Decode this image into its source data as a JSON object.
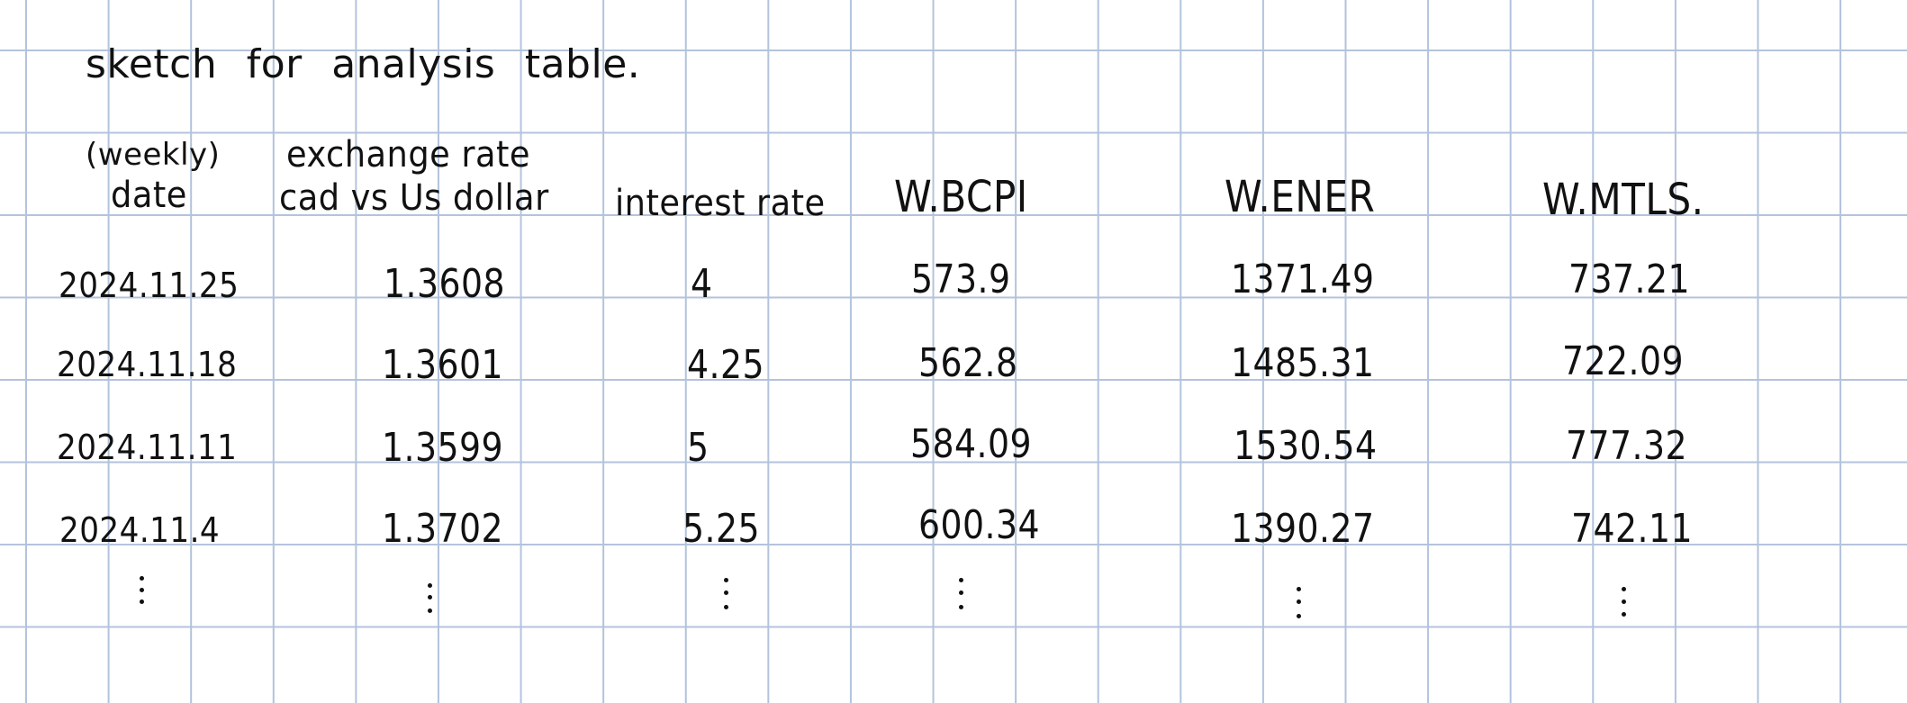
{
  "title": "sketch for analysis table.",
  "headers": {
    "date_note": "(weekly)",
    "date": "date",
    "exchange_line1": "exchange rate",
    "exchange_line2": "cad vs Us dollar",
    "interest": "interest rate",
    "wbcpi": "W.BCPI",
    "wener": "W.ENER",
    "wmtls": "W.MTLS."
  },
  "rows": [
    {
      "date": "2024.11.25",
      "exchange": "1.3608",
      "interest": "4",
      "wbcpi": "573.9",
      "wener": "1371.49",
      "wmtls": "737.21"
    },
    {
      "date": "2024.11.18",
      "exchange": "1.3601",
      "interest": "4.25",
      "wbcpi": "562.8",
      "wener": "1485.31",
      "wmtls": "722.09"
    },
    {
      "date": "2024.11.11",
      "exchange": "1.3599",
      "interest": "5",
      "wbcpi": "584.09",
      "wener": "1530.54",
      "wmtls": "777.32"
    },
    {
      "date": "2024.11.4",
      "exchange": "1.3702",
      "interest": "5.25",
      "wbcpi": "600.34",
      "wener": "1390.27",
      "wmtls": "742.11"
    }
  ],
  "continuation": "⋮",
  "colors": {
    "ink": "#111111",
    "grid": "#b3c3dc",
    "paper": "#ffffff"
  }
}
